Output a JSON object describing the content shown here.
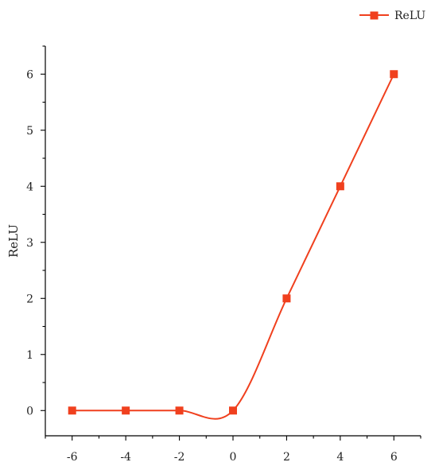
{
  "chart_data": {
    "type": "line",
    "x": [
      -6,
      -4,
      -2,
      0,
      2,
      4,
      6
    ],
    "series": [
      {
        "name": "ReLU",
        "values": [
          0,
          0,
          0,
          0,
          2,
          4,
          6
        ],
        "color": "#f0401e",
        "marker": "square",
        "smooth": true
      }
    ],
    "xlabel": "",
    "ylabel": "ReLU",
    "xlim": [
      -7,
      7
    ],
    "ylim": [
      -0.45,
      6.5
    ],
    "xticks": [
      "-6",
      "-4",
      "-2",
      "0",
      "2",
      "4",
      "6"
    ],
    "yticks": [
      "0",
      "1",
      "2",
      "3",
      "4",
      "5",
      "6"
    ],
    "grid": false,
    "legend": {
      "position": "top-right",
      "label": "ReLU"
    }
  }
}
